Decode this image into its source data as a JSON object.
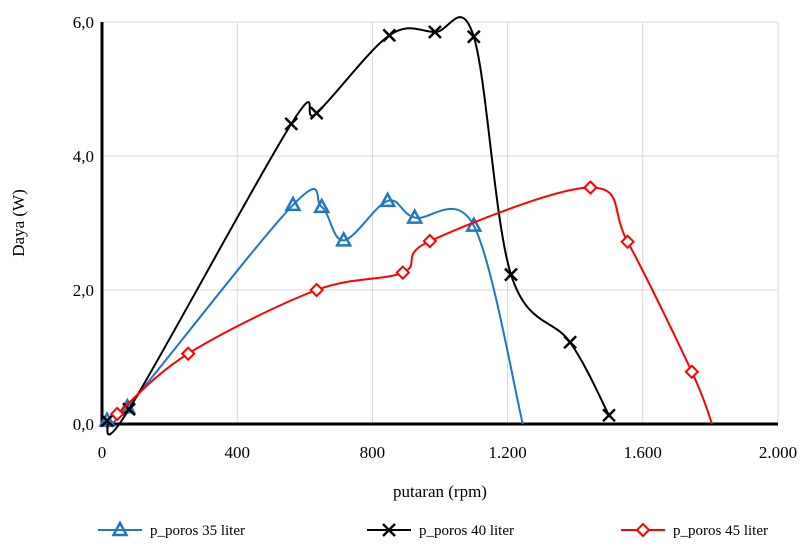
{
  "chart_data": {
    "type": "line",
    "xlabel": "putaran (rpm)",
    "ylabel": "Daya (W)",
    "xlim": [
      0,
      2000
    ],
    "ylim": [
      0,
      6
    ],
    "x_ticks": [
      "0",
      "400",
      "800",
      "1.200",
      "1.600",
      "2.000"
    ],
    "y_ticks": [
      "0,0",
      "2,0",
      "4,0",
      "6,0"
    ],
    "grid": true,
    "legend_position": "bottom",
    "series": [
      {
        "name": "p_poros 35 liter",
        "color": "#1f77c4",
        "marker": "triangle",
        "x": [
          15,
          75,
          565,
          650,
          715,
          845,
          925,
          1100,
          1245
        ],
        "y": [
          0.05,
          0.25,
          3.27,
          3.24,
          2.74,
          3.33,
          3.08,
          2.96,
          0.0
        ],
        "marked": [
          true,
          true,
          true,
          true,
          true,
          true,
          true,
          true,
          false
        ]
      },
      {
        "name": "p_poros 40 liter",
        "color": "#000000",
        "marker": "x",
        "x": [
          15,
          80,
          560,
          635,
          850,
          985,
          1100,
          1210,
          1385,
          1500
        ],
        "y": [
          0.05,
          0.22,
          4.48,
          4.64,
          5.8,
          5.85,
          5.78,
          2.23,
          1.22,
          0.13
        ],
        "marked": [
          true,
          true,
          true,
          true,
          true,
          true,
          true,
          true,
          true,
          true
        ]
      },
      {
        "name": "p_poros 45 liter",
        "color": "#ff0000",
        "marker": "diamond",
        "x": [
          45,
          255,
          635,
          890,
          970,
          1445,
          1555,
          1745,
          1805
        ],
        "y": [
          0.15,
          1.05,
          2.0,
          2.26,
          2.73,
          3.53,
          2.72,
          0.78,
          0.0
        ],
        "marked": [
          true,
          true,
          true,
          true,
          true,
          true,
          true,
          true,
          false
        ]
      }
    ]
  }
}
